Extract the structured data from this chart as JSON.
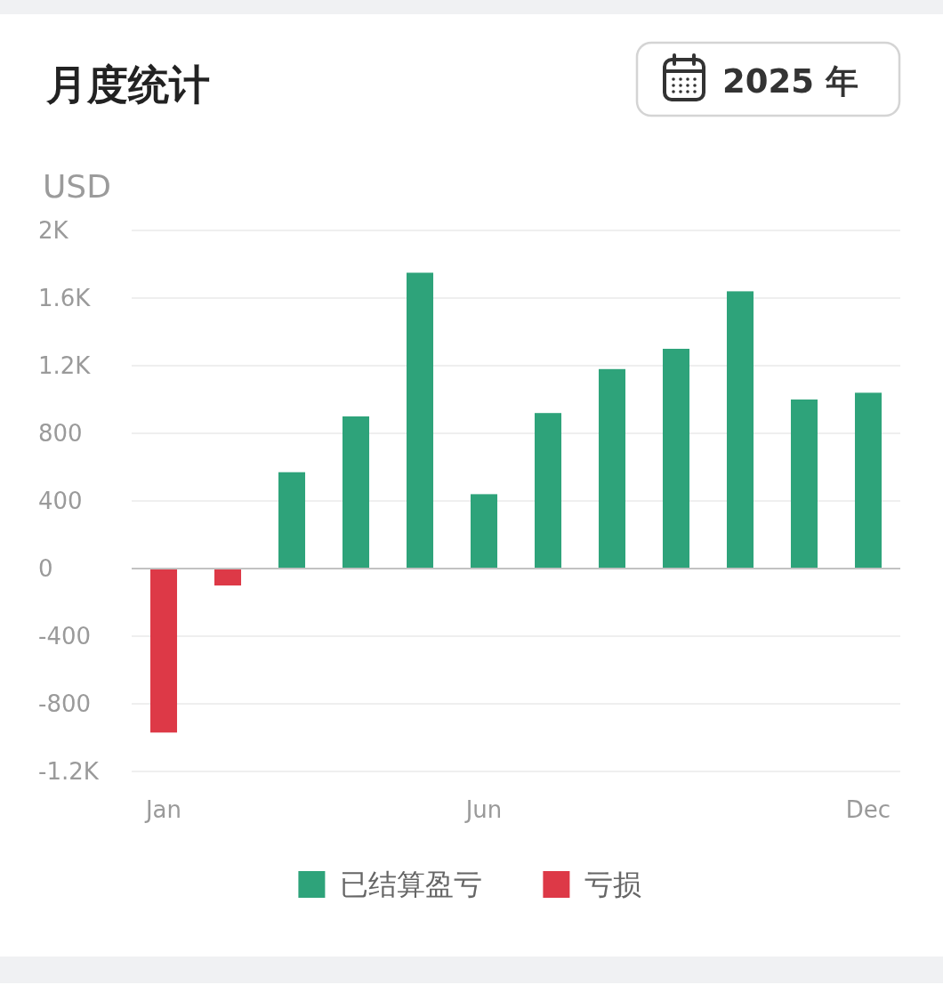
{
  "chart_data": {
    "type": "bar",
    "title": "月度统计",
    "subtitle": "2025 年",
    "ylabel": "USD",
    "categories": [
      "Jan",
      null,
      null,
      null,
      null,
      "Jun",
      null,
      null,
      null,
      null,
      null,
      "Dec"
    ],
    "series": [
      {
        "name": "已结算盈亏",
        "color": "#2ea37a",
        "values": [
          null,
          null,
          570,
          900,
          1750,
          440,
          920,
          1180,
          1300,
          1640,
          1000,
          1040
        ]
      },
      {
        "name": "亏损",
        "color": "#dd3947",
        "values": [
          -970,
          -100,
          null,
          null,
          null,
          null,
          null,
          null,
          null,
          null,
          null,
          null
        ]
      }
    ],
    "stacked": true,
    "ylim": [
      -1200,
      2000
    ],
    "yticks": [
      {
        "value": -1200,
        "label": "-1.2K"
      },
      -800,
      -400,
      0,
      400,
      800,
      {
        "value": 1200,
        "label": "1.2K"
      },
      {
        "value": 1600,
        "label": "1.6K"
      },
      {
        "value": 2000,
        "label": "2K"
      }
    ],
    "grid": "y",
    "legend": "bottom"
  }
}
